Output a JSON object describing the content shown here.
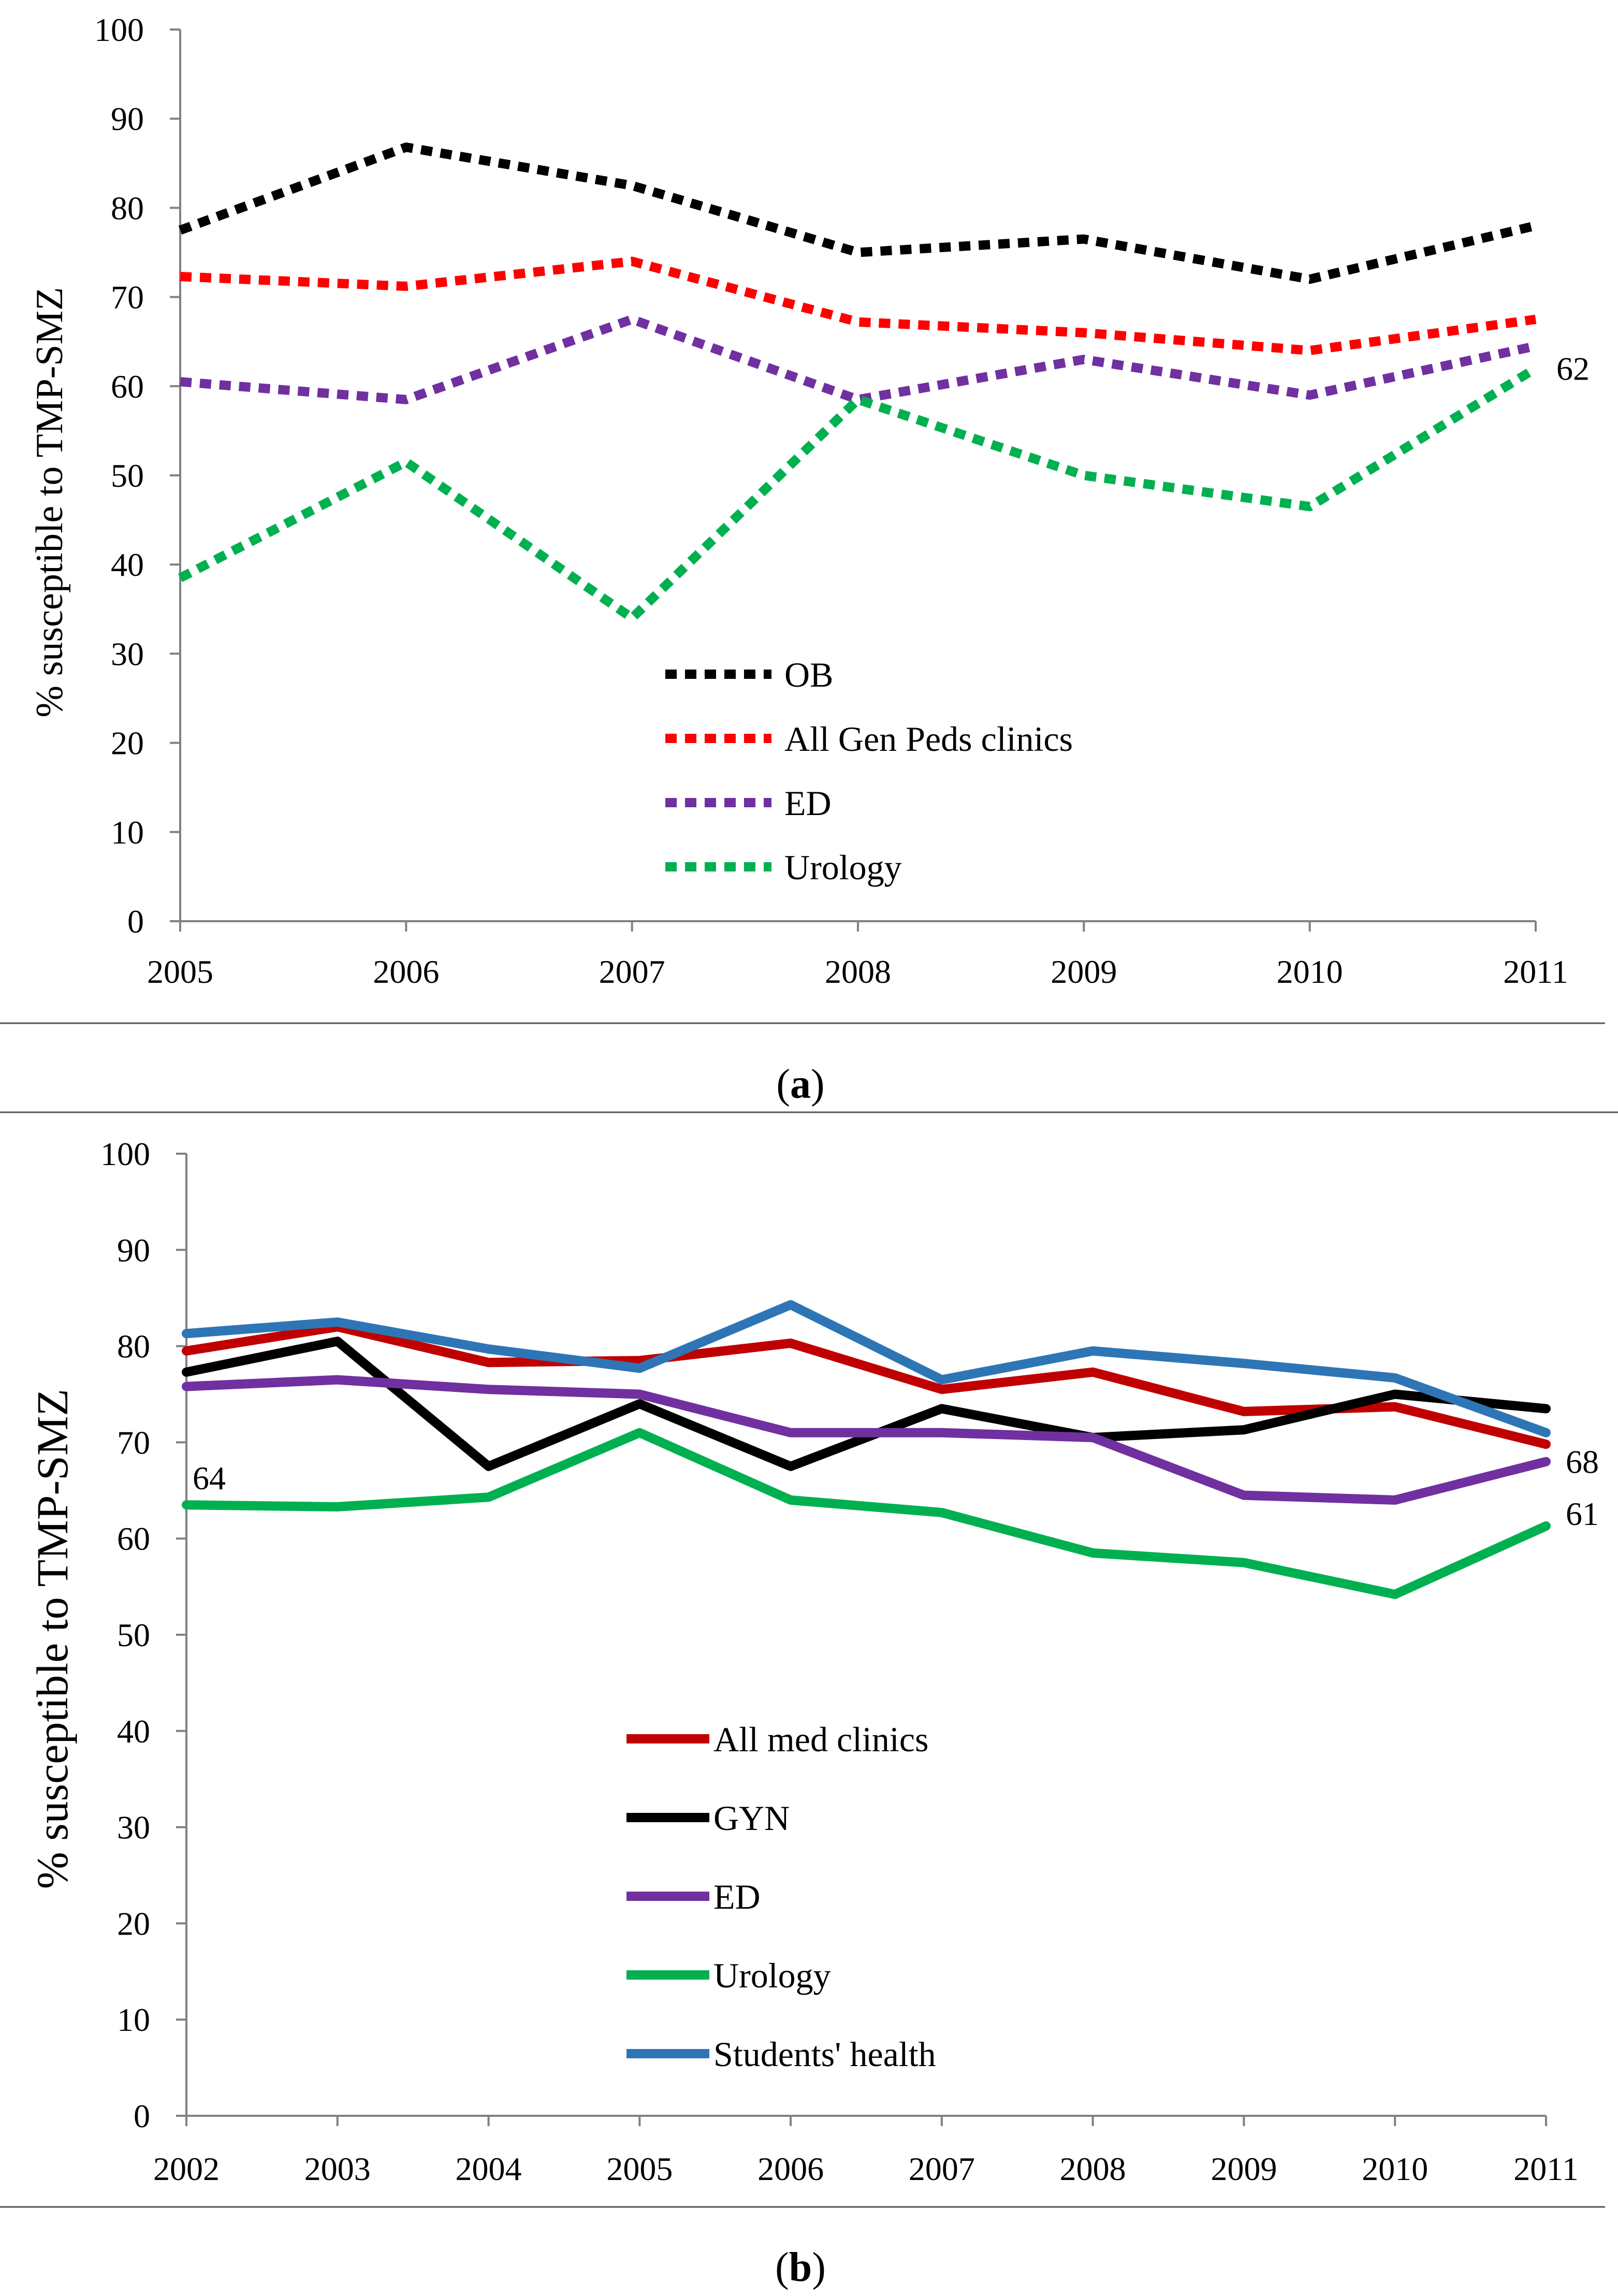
{
  "chart_data": [
    {
      "type": "line",
      "panel": "a",
      "caption_open": "(",
      "caption_letter": "a",
      "caption_close": ")",
      "ylabel": "% susceptible to TMP-SMZ",
      "xlabel": "",
      "x": [
        "2005",
        "2006",
        "2007",
        "2008",
        "2009",
        "2010",
        "2011"
      ],
      "ylim": [
        0,
        100
      ],
      "yticks": [
        "0",
        "10",
        "20",
        "30",
        "40",
        "50",
        "60",
        "70",
        "80",
        "90",
        "100"
      ],
      "line_style": "dotted",
      "series": [
        {
          "name": "OB",
          "color": "#000000",
          "values": [
            77.5,
            86.8,
            82.5,
            75,
            76.5,
            72,
            78
          ]
        },
        {
          "name": "All Gen Peds clinics",
          "color": "#ff0000",
          "values": [
            72.3,
            71.2,
            74,
            67.2,
            66,
            64,
            67.5
          ]
        },
        {
          "name": "ED",
          "color": "#7030a0",
          "values": [
            60.5,
            58.5,
            67.5,
            58.5,
            63,
            59,
            64.5
          ]
        },
        {
          "name": "Urology",
          "color": "#00b050",
          "values": [
            38.5,
            51.5,
            34,
            58.5,
            50,
            46.5,
            62
          ]
        }
      ],
      "annotations": [
        {
          "text": "62",
          "series": "Urology",
          "at": "2011"
        }
      ],
      "legend": "center-lower"
    },
    {
      "type": "line",
      "panel": "b",
      "caption_open": "(",
      "caption_letter": "b",
      "caption_close": ")",
      "ylabel": "% susceptible to TMP-SMZ",
      "xlabel": "",
      "x": [
        "2002",
        "2003",
        "2004",
        "2005",
        "2006",
        "2007",
        "2008",
        "2009",
        "2010",
        "2011"
      ],
      "ylim": [
        0,
        100
      ],
      "yticks": [
        "0",
        "10",
        "20",
        "30",
        "40",
        "50",
        "60",
        "70",
        "80",
        "90",
        "100"
      ],
      "line_style": "solid",
      "series": [
        {
          "name": "All med clinics",
          "color": "#c00000",
          "values": [
            79.5,
            82,
            78.3,
            78.5,
            80.3,
            75.5,
            77.3,
            73.2,
            73.7,
            69.8
          ]
        },
        {
          "name": "GYN",
          "color": "#000000",
          "values": [
            77.3,
            80.5,
            67.5,
            74,
            67.5,
            73.5,
            70.5,
            71.3,
            75,
            73.5
          ]
        },
        {
          "name": "ED",
          "color": "#7030a0",
          "values": [
            75.8,
            76.5,
            75.5,
            75,
            71,
            71,
            70.5,
            64.5,
            64,
            68
          ]
        },
        {
          "name": "Urology",
          "color": "#00b050",
          "values": [
            63.5,
            63.3,
            64.3,
            71,
            64,
            62.7,
            58.5,
            57.5,
            54.2,
            61.3
          ]
        },
        {
          "name": "Students' health",
          "color": "#2e75b6",
          "values": [
            81.3,
            82.5,
            79.7,
            77.7,
            84.3,
            76.5,
            79.5,
            78.2,
            76.7,
            71
          ]
        }
      ],
      "annotations": [
        {
          "text": "64",
          "series": "Urology",
          "at": "2002"
        },
        {
          "text": "68",
          "series": "ED",
          "at": "2011"
        },
        {
          "text": "61",
          "series": "Urology",
          "at": "2011"
        }
      ],
      "legend": "center-lower"
    }
  ]
}
